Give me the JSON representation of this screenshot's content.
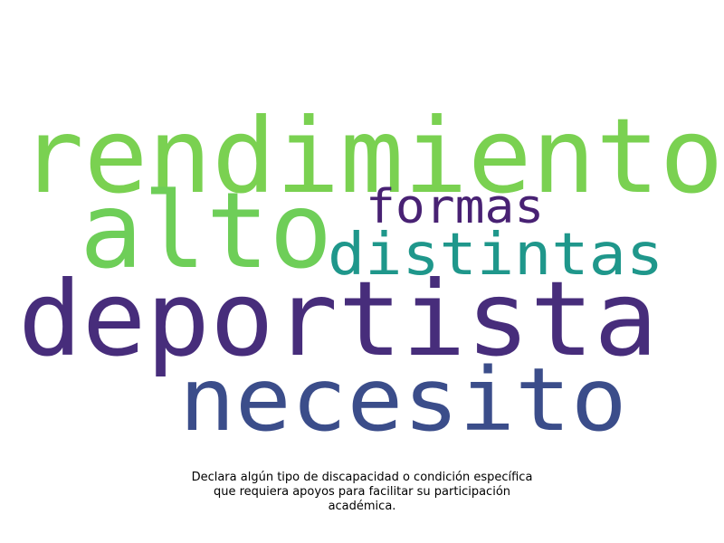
{
  "words": [
    {
      "text": "rendimiento",
      "color": "#7ad151"
    },
    {
      "text": "alto",
      "color": "#6ece58"
    },
    {
      "text": "formas",
      "color": "#482173"
    },
    {
      "text": "distintas",
      "color": "#1f978b"
    },
    {
      "text": "deportista",
      "color": "#472d7b"
    },
    {
      "text": "necesito",
      "color": "#3b4d8a"
    }
  ],
  "caption": {
    "line1": "Declara algún tipo de discapacidad o condición específica",
    "line2": "que requiera apoyos para facilitar su participación",
    "line3": "académica."
  }
}
